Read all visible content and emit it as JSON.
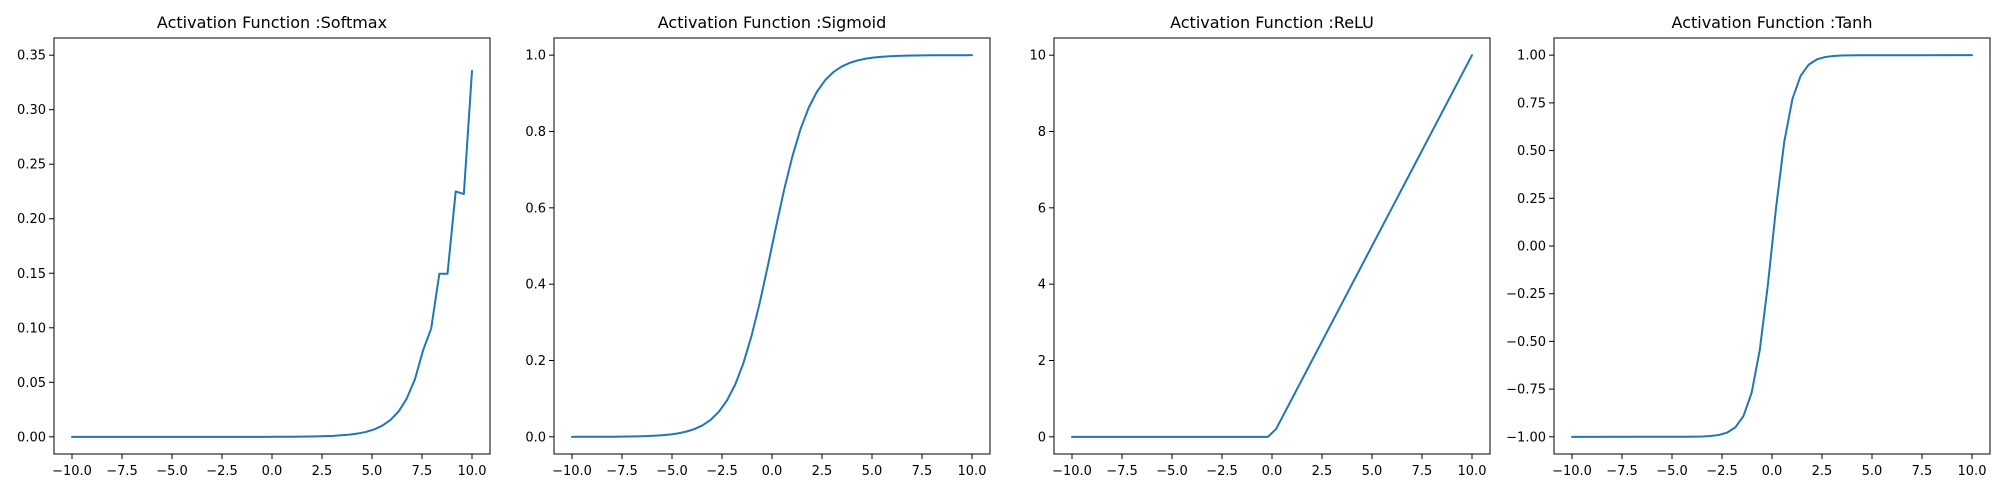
{
  "colors": {
    "series": "#1f77b4"
  },
  "chart_data": [
    {
      "type": "line",
      "title": "Activation Function :Softmax",
      "xlabel": "",
      "ylabel": "",
      "xlim": [
        -10,
        10
      ],
      "ylim": [
        0,
        0.35
      ],
      "grid": false,
      "x_ticks": [
        -10.0,
        -7.5,
        -5.0,
        -2.5,
        0.0,
        2.5,
        5.0,
        7.5,
        10.0
      ],
      "x_tick_labels": [
        "−10.0",
        "−7.5",
        "−5.0",
        "−2.5",
        "0.0",
        "2.5",
        "5.0",
        "7.5",
        "10.0"
      ],
      "y_ticks": [
        0.0,
        0.05,
        0.1,
        0.15,
        0.2,
        0.25,
        0.3,
        0.35
      ],
      "y_tick_labels": [
        "0.00",
        "0.05",
        "0.10",
        "0.15",
        "0.20",
        "0.25",
        "0.30",
        "0.35"
      ],
      "series": [
        {
          "x": [
            -10.0,
            -9.5918,
            -9.1837,
            -8.7755,
            -8.3673,
            -7.9592,
            -7.551,
            -7.1429,
            -6.7347,
            -6.3265,
            -5.9184,
            -5.5102,
            -5.102,
            -4.6939,
            -4.2857,
            -3.8776,
            -3.4694,
            -3.0612,
            -2.6531,
            -2.2449,
            -1.8367,
            -1.4286,
            -1.0204,
            -0.6122,
            -0.2041,
            0.2041,
            0.6122,
            1.0204,
            1.4286,
            1.8367,
            2.2449,
            2.6531,
            3.0612,
            3.4694,
            3.8776,
            4.2857,
            4.6939,
            5.102,
            5.5102,
            5.9184,
            6.3265,
            6.7347,
            7.1429,
            7.551,
            7.9592,
            8.3673,
            8.7755,
            9.1837,
            9.5918,
            10.0
          ],
          "y": [
            0.0,
            0.0,
            0.0,
            0.0,
            0.0,
            0.0,
            0.0,
            0.0,
            0.0,
            0.0,
            0.0,
            0.0,
            0.0,
            0.0,
            0.0,
            0.0,
            0.0,
            0.0,
            0.0,
            0.0,
            0.0,
            0.0,
            0.0,
            0.0,
            0.0,
            0.0001,
            0.0001,
            0.0001,
            0.0002,
            0.0003,
            0.0004,
            0.0006,
            0.0009,
            0.0014,
            0.002,
            0.003,
            0.0045,
            0.0068,
            0.0102,
            0.0154,
            0.0232,
            0.035,
            0.0526,
            0.0792,
            0.0993,
            0.1495,
            0.1495,
            0.225,
            0.2226,
            0.3356
          ]
        }
      ]
    },
    {
      "type": "line",
      "title": "Activation Function :Sigmoid",
      "xlabel": "",
      "ylabel": "",
      "xlim": [
        -10,
        10
      ],
      "ylim": [
        0,
        1
      ],
      "grid": false,
      "x_ticks": [
        -10.0,
        -7.5,
        -5.0,
        -2.5,
        0.0,
        2.5,
        5.0,
        7.5,
        10.0
      ],
      "x_tick_labels": [
        "−10.0",
        "−7.5",
        "−5.0",
        "−2.5",
        "0.0",
        "2.5",
        "5.0",
        "7.5",
        "10.0"
      ],
      "y_ticks": [
        0.0,
        0.2,
        0.4,
        0.6,
        0.8,
        1.0
      ],
      "y_tick_labels": [
        "0.0",
        "0.2",
        "0.4",
        "0.6",
        "0.8",
        "1.0"
      ],
      "series": [
        {
          "x": [
            -10.0,
            -9.5918,
            -9.1837,
            -8.7755,
            -8.3673,
            -7.9592,
            -7.551,
            -7.1429,
            -6.7347,
            -6.3265,
            -5.9184,
            -5.5102,
            -5.102,
            -4.6939,
            -4.2857,
            -3.8776,
            -3.4694,
            -3.0612,
            -2.6531,
            -2.2449,
            -1.8367,
            -1.4286,
            -1.0204,
            -0.6122,
            -0.2041,
            0.2041,
            0.6122,
            1.0204,
            1.4286,
            1.8367,
            2.2449,
            2.6531,
            3.0612,
            3.4694,
            3.8776,
            4.2857,
            4.6939,
            5.102,
            5.5102,
            5.9184,
            6.3265,
            6.7347,
            7.1429,
            7.551,
            7.9592,
            8.3673,
            8.7755,
            9.1837,
            9.5918,
            10.0
          ],
          "y": [
            0.0,
            0.0001,
            0.0001,
            0.0002,
            0.0002,
            0.0003,
            0.0005,
            0.0008,
            0.0012,
            0.0018,
            0.0027,
            0.004,
            0.006,
            0.009,
            0.0136,
            0.0203,
            0.0302,
            0.0447,
            0.0658,
            0.0958,
            0.1374,
            0.1933,
            0.265,
            0.3515,
            0.4491,
            0.5509,
            0.6485,
            0.735,
            0.8067,
            0.8626,
            0.9042,
            0.9342,
            0.9553,
            0.9698,
            0.9797,
            0.9864,
            0.991,
            0.994,
            0.996,
            0.9973,
            0.9982,
            0.9988,
            0.9992,
            0.9995,
            0.9997,
            0.9998,
            0.9998,
            0.9999,
            0.9999,
            1.0
          ]
        }
      ]
    },
    {
      "type": "line",
      "title": "Activation Function :ReLU",
      "xlabel": "",
      "ylabel": "",
      "xlim": [
        -10,
        10
      ],
      "ylim": [
        0,
        10
      ],
      "grid": false,
      "x_ticks": [
        -10.0,
        -7.5,
        -5.0,
        -2.5,
        0.0,
        2.5,
        5.0,
        7.5,
        10.0
      ],
      "x_tick_labels": [
        "−10.0",
        "−7.5",
        "−5.0",
        "−2.5",
        "0.0",
        "2.5",
        "5.0",
        "7.5",
        "10.0"
      ],
      "y_ticks": [
        0,
        2,
        4,
        6,
        8,
        10
      ],
      "y_tick_labels": [
        "0",
        "2",
        "4",
        "6",
        "8",
        "10"
      ],
      "series": [
        {
          "x": [
            -10.0,
            -0.2041,
            0.2041,
            10.0
          ],
          "y": [
            0.0,
            0.0,
            0.2041,
            10.0
          ]
        }
      ]
    },
    {
      "type": "line",
      "title": "Activation Function :Tanh",
      "xlabel": "",
      "ylabel": "",
      "xlim": [
        -10,
        10
      ],
      "ylim": [
        -1,
        1
      ],
      "grid": false,
      "x_ticks": [
        -10.0,
        -7.5,
        -5.0,
        -2.5,
        0.0,
        2.5,
        5.0,
        7.5,
        10.0
      ],
      "x_tick_labels": [
        "−10.0",
        "−7.5",
        "−5.0",
        "−2.5",
        "0.0",
        "2.5",
        "5.0",
        "7.5",
        "10.0"
      ],
      "y_ticks": [
        -1.0,
        -0.75,
        -0.5,
        -0.25,
        0.0,
        0.25,
        0.5,
        0.75,
        1.0
      ],
      "y_tick_labels": [
        "−1.00",
        "−0.75",
        "−0.50",
        "−0.25",
        "0.00",
        "0.25",
        "0.50",
        "0.75",
        "1.00"
      ],
      "series": [
        {
          "x": [
            -10.0,
            -4.6939,
            -4.2857,
            -3.8776,
            -3.4694,
            -3.0612,
            -2.6531,
            -2.2449,
            -1.8367,
            -1.4286,
            -1.0204,
            -0.6122,
            -0.2041,
            0.2041,
            0.6122,
            1.0204,
            1.4286,
            1.8367,
            2.2449,
            2.6531,
            3.0612,
            3.4694,
            3.8776,
            4.2857,
            4.6939,
            10.0
          ],
          "y": [
            -1.0,
            -0.9998,
            -0.9996,
            -0.9991,
            -0.998,
            -0.9956,
            -0.9901,
            -0.9779,
            -0.9506,
            -0.8913,
            -0.7701,
            -0.5455,
            -0.2013,
            0.2013,
            0.5455,
            0.7701,
            0.8913,
            0.9506,
            0.9779,
            0.9901,
            0.9956,
            0.998,
            0.9991,
            0.9996,
            0.9998,
            1.0
          ]
        }
      ]
    }
  ]
}
